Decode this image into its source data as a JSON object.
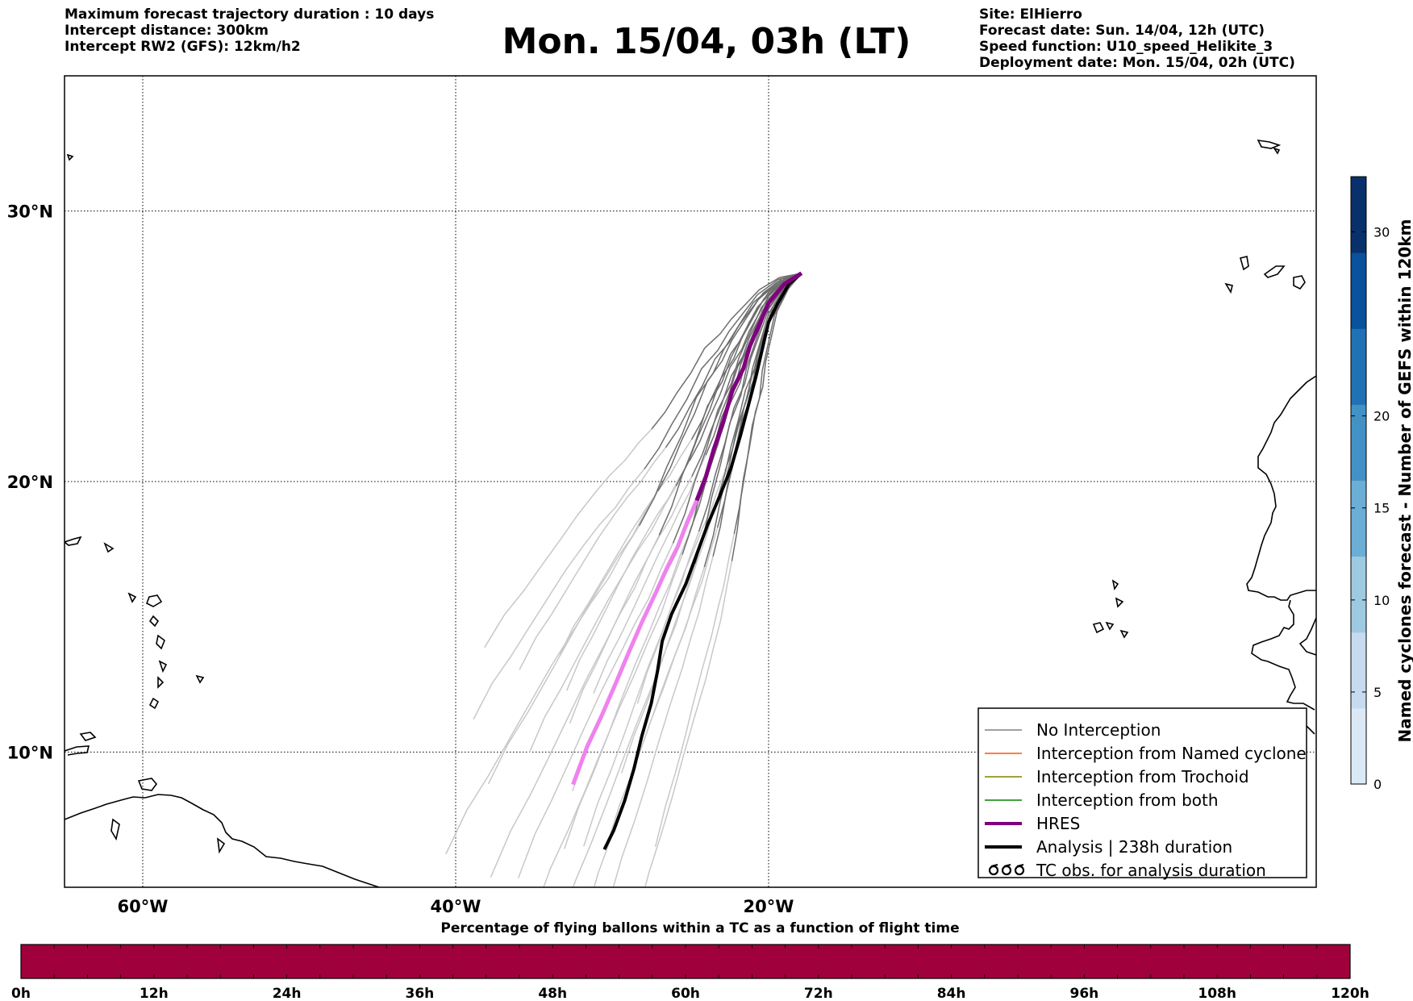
{
  "header_left": [
    "Maximum forecast trajectory duration : 10 days",
    "Intercept distance: 300km",
    "Intercept RW2 (GFS):  12km/h2"
  ],
  "title": "Mon. 15/04, 03h (LT)",
  "header_right": [
    "Site: ElHierro",
    "Forecast date: Sun. 14/04, 12h (UTC)",
    "Speed function: U10_speed_Helikite_3",
    "Deployment date: Mon. 15/04, 02h (UTC)"
  ],
  "map": {
    "lon_range": [
      -65,
      15
    ],
    "lat_range": [
      5,
      35
    ],
    "lon_ticks": [
      {
        "lon": -60,
        "label": "60°W"
      },
      {
        "lon": -40,
        "label": "40°W"
      },
      {
        "lon": -20,
        "label": "20°W"
      }
    ],
    "lat_ticks": [
      {
        "lat": 30,
        "label": "30°N"
      },
      {
        "lat": 20,
        "label": "20°N"
      },
      {
        "lat": 10,
        "label": "10°N"
      }
    ]
  },
  "legend": {
    "items": [
      {
        "label": "No Interception",
        "color": "#808080",
        "style": "thin"
      },
      {
        "label": "Interception from Named cyclone",
        "color": "#ff5500",
        "style": "thin"
      },
      {
        "label": "Interception from Trochoid",
        "color": "#808000",
        "style": "thin"
      },
      {
        "label": "Interception from both",
        "color": "#008000",
        "style": "thin"
      },
      {
        "label": "HRES",
        "color": "#800080",
        "style": "thick"
      },
      {
        "label": "Analysis | 238h duration",
        "color": "#000000",
        "style": "thick"
      },
      {
        "label": "TC obs. for analysis duration",
        "color": "#000000",
        "style": "symbol"
      }
    ]
  },
  "colorbar": {
    "title": "Named cyclones forecast - Number of GEFS within 120km",
    "ticks": [
      0,
      5,
      10,
      15,
      20,
      30
    ],
    "max": 33,
    "colors": [
      "#dbe9f6",
      "#c6dbef",
      "#9ecae1",
      "#6baed6",
      "#4292c6",
      "#2171b5",
      "#08519c",
      "#08306b"
    ]
  },
  "bottom_bar": {
    "title": "Percentage of flying ballons within a TC as a function of flight time",
    "color": "#a0003c",
    "tick_labels": [
      "0h",
      "12h",
      "24h",
      "36h",
      "48h",
      "60h",
      "72h",
      "84h",
      "96h",
      "108h",
      "120h"
    ]
  },
  "tracks": {
    "origin": {
      "lon": -17.9,
      "lat": 27.7
    },
    "hres": [
      [
        -17.9,
        27.7
      ],
      [
        -19.0,
        27.3
      ],
      [
        -20.0,
        26.6
      ],
      [
        -20.6,
        25.8
      ],
      [
        -21.2,
        25.0
      ],
      [
        -21.6,
        24.2
      ],
      [
        -22.3,
        23.4
      ],
      [
        -22.9,
        22.2
      ],
      [
        -23.5,
        21.2
      ],
      [
        -24.0,
        20.2
      ],
      [
        -24.6,
        19.3
      ],
      [
        -25.2,
        18.5
      ],
      [
        -25.8,
        17.6
      ],
      [
        -26.5,
        16.8
      ],
      [
        -27.2,
        15.9
      ],
      [
        -28.1,
        14.8
      ],
      [
        -29.0,
        13.6
      ],
      [
        -29.8,
        12.5
      ],
      [
        -30.7,
        11.3
      ],
      [
        -31.6,
        10.2
      ],
      [
        -32.5,
        8.8
      ]
    ],
    "analysis": [
      [
        -17.9,
        27.7
      ],
      [
        -18.7,
        27.3
      ],
      [
        -19.4,
        26.6
      ],
      [
        -20.0,
        25.9
      ],
      [
        -20.4,
        24.9
      ],
      [
        -20.8,
        23.9
      ],
      [
        -21.3,
        22.8
      ],
      [
        -21.8,
        21.7
      ],
      [
        -22.4,
        20.5
      ],
      [
        -23.1,
        19.5
      ],
      [
        -23.9,
        18.4
      ],
      [
        -24.6,
        17.3
      ],
      [
        -25.3,
        16.2
      ],
      [
        -26.2,
        15.1
      ],
      [
        -26.8,
        14.1
      ],
      [
        -27.1,
        13.0
      ],
      [
        -27.5,
        11.8
      ],
      [
        -28.1,
        10.6
      ],
      [
        -28.6,
        9.4
      ],
      [
        -29.2,
        8.2
      ],
      [
        -29.9,
        7.1
      ],
      [
        -30.5,
        6.4
      ]
    ],
    "ensemble_spread": [
      {
        "dlon": -0.9,
        "dlat": 1.3,
        "scale": 1.05
      },
      {
        "dlon": -0.5,
        "dlat": 0.7,
        "scale": 0.95
      },
      {
        "dlon": 0.3,
        "dlat": -0.4,
        "scale": 1.1
      },
      {
        "dlon": 0.7,
        "dlat": -0.9,
        "scale": 0.9
      },
      {
        "dlon": -1.4,
        "dlat": 1.9,
        "scale": 1.15
      },
      {
        "dlon": 1.1,
        "dlat": -1.3,
        "scale": 1.0
      },
      {
        "dlon": -0.2,
        "dlat": 0.2,
        "scale": 1.2
      },
      {
        "dlon": 0.5,
        "dlat": -0.6,
        "scale": 0.8
      },
      {
        "dlon": -1.8,
        "dlat": 2.3,
        "scale": 0.98
      },
      {
        "dlon": 1.5,
        "dlat": -1.8,
        "scale": 1.08
      },
      {
        "dlon": -0.7,
        "dlat": 0.9,
        "scale": 1.25
      },
      {
        "dlon": 0.9,
        "dlat": -1.1,
        "scale": 1.18
      },
      {
        "dlon": -1.1,
        "dlat": 1.6,
        "scale": 0.88
      },
      {
        "dlon": 0.1,
        "dlat": 0.0,
        "scale": 1.02
      },
      {
        "dlon": -2.2,
        "dlat": 2.8,
        "scale": 1.12
      },
      {
        "dlon": 1.9,
        "dlat": -2.2,
        "scale": 0.94
      },
      {
        "dlon": -0.4,
        "dlat": 0.4,
        "scale": 0.85
      },
      {
        "dlon": 0.4,
        "dlat": -0.3,
        "scale": 1.22
      },
      {
        "dlon": -1.6,
        "dlat": 2.0,
        "scale": 1.3
      },
      {
        "dlon": 1.3,
        "dlat": -1.5,
        "scale": 1.14
      },
      {
        "dlon": -0.8,
        "dlat": 1.1,
        "scale": 0.92
      },
      {
        "dlon": 0.6,
        "dlat": -0.8,
        "scale": 1.06
      },
      {
        "dlon": -2.6,
        "dlat": 3.2,
        "scale": 1.0
      },
      {
        "dlon": 2.2,
        "dlat": -2.5,
        "scale": 1.04
      }
    ]
  }
}
